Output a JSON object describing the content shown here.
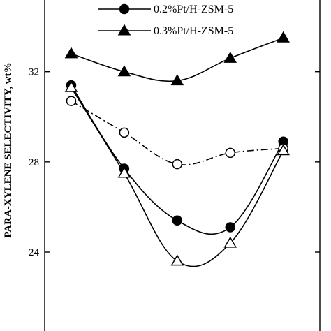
{
  "chart_data": {
    "type": "line",
    "ylabel": "PARA-XYLENE SELECTIVITY, wt%",
    "yticks": [
      24,
      28,
      32
    ],
    "ylim": [
      20.5,
      35.8
    ],
    "x": [
      1,
      2,
      3,
      4,
      5
    ],
    "xlim": [
      0.5,
      5.9
    ],
    "legend_position": "top",
    "series": [
      {
        "name": "0.2%Pt/H-ZSM-5",
        "marker": "filled-circle",
        "line_style": "solid",
        "legend": true,
        "x": [
          1,
          2,
          3,
          4,
          5
        ],
        "values": [
          31.4,
          27.7,
          25.4,
          25.1,
          28.9
        ]
      },
      {
        "name": "0.3%Pt/H-ZSM-5",
        "marker": "filled-triangle",
        "line_style": "solid",
        "legend": true,
        "x": [
          1,
          2,
          3,
          4,
          5
        ],
        "values": [
          32.8,
          32.0,
          31.6,
          32.6,
          33.5
        ]
      },
      {
        "name": "",
        "marker": "open-circle",
        "line_style": "dash-dot",
        "legend": false,
        "x": [
          1,
          2,
          3,
          4,
          5
        ],
        "values": [
          30.7,
          29.3,
          27.9,
          28.4,
          28.6
        ]
      },
      {
        "name": "",
        "marker": "open-triangle",
        "line_style": "solid",
        "legend": false,
        "x": [
          1,
          2,
          3,
          4,
          5
        ],
        "values": [
          31.3,
          27.5,
          23.6,
          24.4,
          28.5
        ]
      }
    ],
    "colors": {
      "ink": "#000000",
      "background": "#ffffff"
    }
  }
}
